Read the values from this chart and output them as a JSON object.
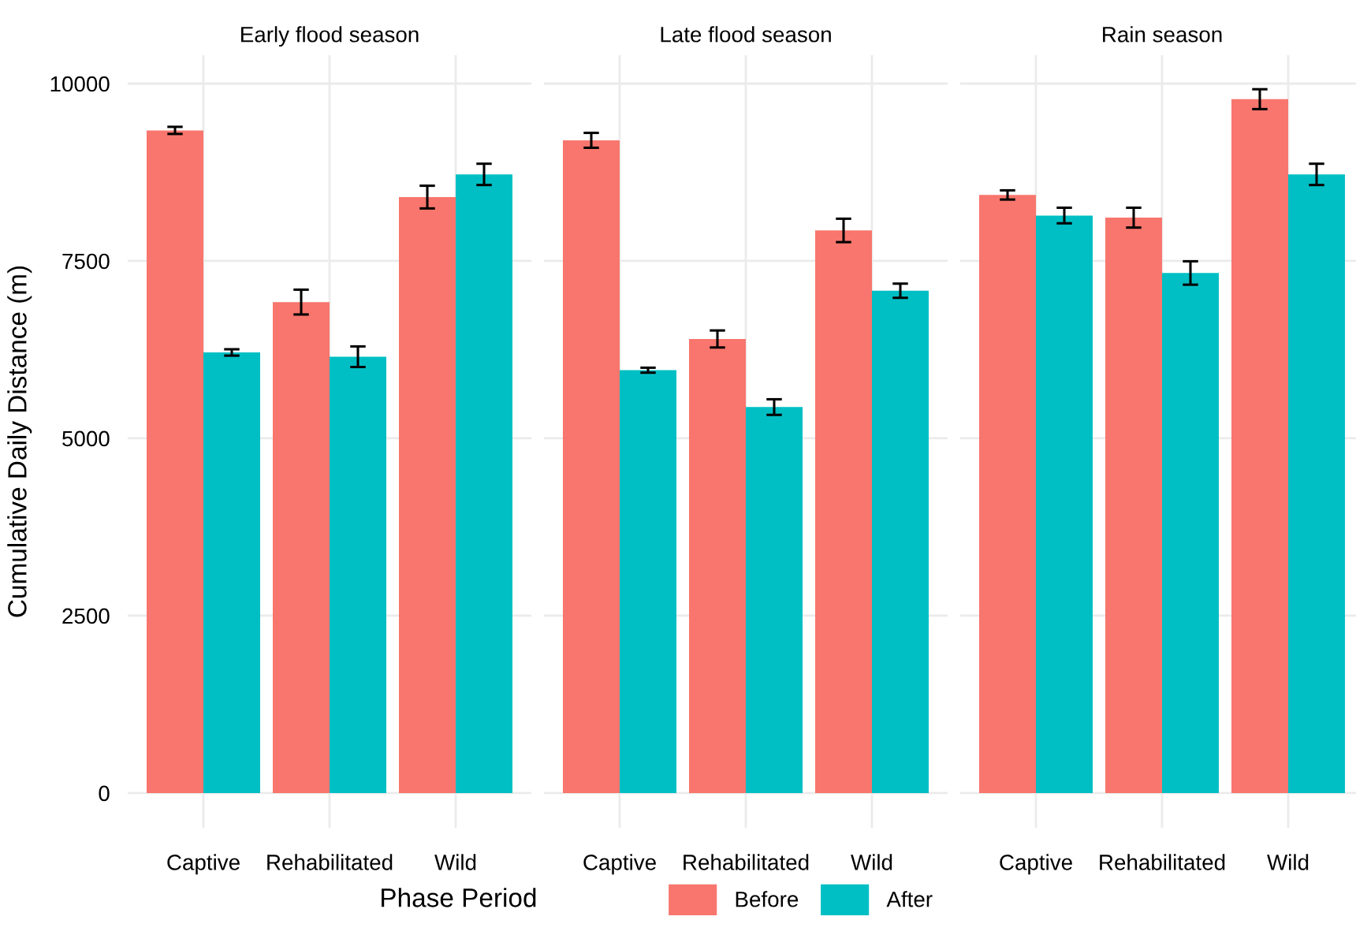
{
  "chart_data": [
    {
      "type": "bar",
      "title": "Early flood season",
      "ylabel": "Cumulative Daily Distance (m)",
      "categories": [
        "Captive",
        "Rehabilitated",
        "Wild"
      ],
      "ylim": [
        -490,
        10400
      ],
      "yticks": [
        0,
        2500,
        5000,
        7500,
        10000
      ],
      "grid": true,
      "legend": "bottom",
      "legend_title": "Phase Period",
      "series": [
        {
          "name": "Before",
          "color": "#f8766d",
          "values": [
            9340,
            6920,
            8400
          ],
          "errors": [
            50,
            175,
            160
          ]
        },
        {
          "name": "After",
          "color": "#00bfc4",
          "values": [
            6210,
            6150,
            8720
          ],
          "errors": [
            45,
            145,
            150
          ]
        }
      ]
    },
    {
      "type": "bar",
      "title": "Late flood season",
      "categories": [
        "Captive",
        "Rehabilitated",
        "Wild"
      ],
      "ylim": [
        -490,
        10400
      ],
      "yticks": [
        0,
        2500,
        5000,
        7500,
        10000
      ],
      "grid": true,
      "tick_labels": "x",
      "series": [
        {
          "color": "#f8766d",
          "values": [
            9200,
            6400,
            7930
          ],
          "errors": [
            105,
            120,
            165
          ]
        },
        {
          "color": "#00bfc4",
          "values": [
            5960,
            5440,
            7080
          ],
          "errors": [
            35,
            110,
            100
          ]
        }
      ]
    },
    {
      "type": "bar",
      "title": "Rain season",
      "categories": [
        "Captive",
        "Rehabilitated",
        "Wild"
      ],
      "ylim": [
        -490,
        10400
      ],
      "yticks": [
        0,
        2500,
        5000,
        7500,
        10000
      ],
      "grid": true,
      "tick_labels": "x",
      "series": [
        {
          "color": "#f8766d",
          "values": [
            8430,
            8110,
            9780
          ],
          "errors": [
            65,
            140,
            140
          ]
        },
        {
          "color": "#00bfc4",
          "values": [
            8140,
            7330,
            8720
          ],
          "errors": [
            110,
            165,
            150
          ]
        }
      ]
    }
  ]
}
